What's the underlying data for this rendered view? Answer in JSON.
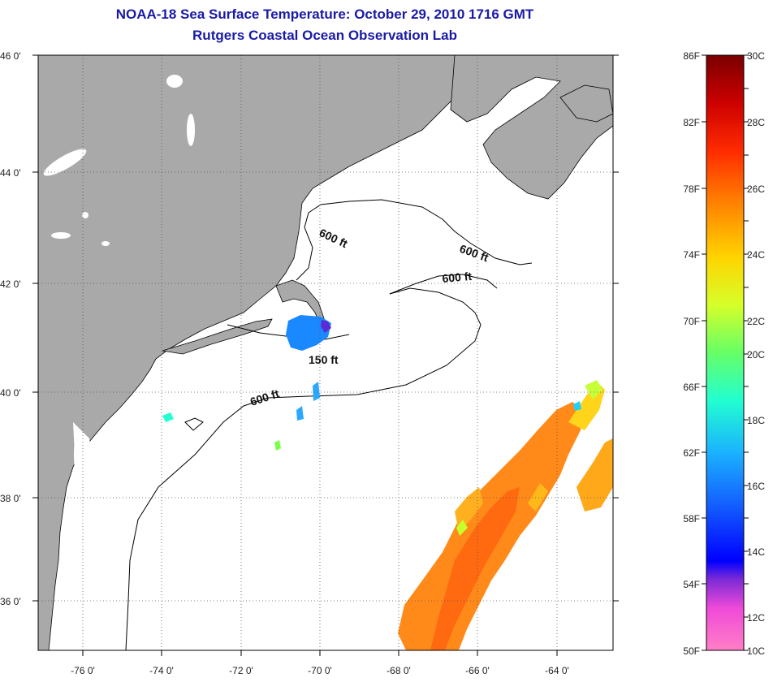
{
  "title": "NOAA-18 Sea Surface Temperature:  October 29, 2010 1716 GMT",
  "subtitle": "Rutgers Coastal Ocean Observation Lab",
  "latitude_labels": [
    "46 0'",
    "44 0'",
    "42 0'",
    "40 0'",
    "38 0'",
    "36 0'"
  ],
  "longitude_labels": [
    "-76 0'",
    "-74 0'",
    "-72 0'",
    "-70 0'",
    "-68 0'",
    "-66 0'",
    "-64 0'"
  ],
  "isobath_labels": [
    "600 ft",
    "600 ft",
    "600 ft",
    "150 ft",
    "600 ft"
  ],
  "colorbar": {
    "fahrenheit_labels": [
      "86F",
      "82F",
      "78F",
      "74F",
      "70F",
      "66F",
      "62F",
      "58F",
      "54F",
      "50F"
    ],
    "celsius_labels": [
      "30C",
      "28C",
      "26C",
      "24C",
      "22C",
      "20C",
      "18C",
      "16C",
      "14C",
      "12C",
      "10C"
    ],
    "colors": [
      "#7a0000",
      "#cc0000",
      "#ff2a00",
      "#ff7a00",
      "#ffd400",
      "#d6ff2a",
      "#66ff66",
      "#22ffd0",
      "#1ab0ff",
      "#1464ff",
      "#0000ff",
      "#7a2ad6",
      "#ff2ad6",
      "#ff80c0"
    ]
  },
  "colors": {
    "land": "#a9a9a9",
    "water": "#ffffff",
    "title": "#1a1aa6"
  }
}
